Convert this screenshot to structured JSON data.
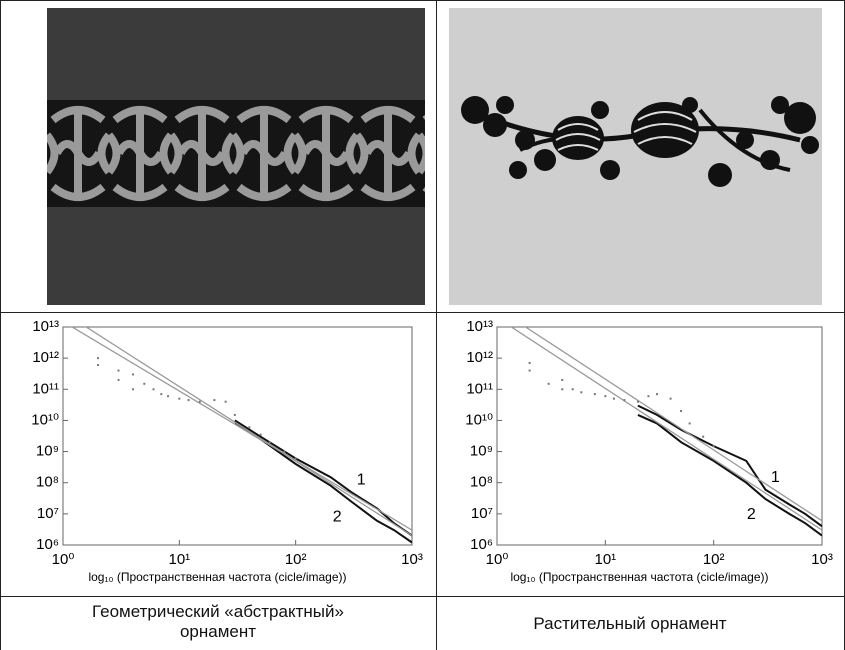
{
  "captions": [
    "Геометрический «абстрактный» орнамент",
    "Растительный орнамент"
  ],
  "chart_data": [
    {
      "type": "line",
      "xlabel": "log₁₀ (Пространственная частота (cicle/image))",
      "log_x": true,
      "log_y": true,
      "xlim": [
        1,
        1000
      ],
      "ylim": [
        1000000,
        10000000000000
      ],
      "xticks": [
        {
          "value": 1,
          "label": "10⁰"
        },
        {
          "value": 10,
          "label": "10¹"
        },
        {
          "value": 100,
          "label": "10²"
        },
        {
          "value": 1000,
          "label": "10³"
        }
      ],
      "yticks": [
        {
          "value": 1000000,
          "label": "10⁶"
        },
        {
          "value": 10000000,
          "label": "10⁷"
        },
        {
          "value": 100000000,
          "label": "10⁸"
        },
        {
          "value": 1000000000,
          "label": "10⁹"
        },
        {
          "value": 10000000000,
          "label": "10¹⁰"
        },
        {
          "value": 100000000000,
          "label": "10¹¹"
        },
        {
          "value": 1000000000000,
          "label": "10¹²"
        },
        {
          "value": 10000000000000,
          "label": "10¹³"
        }
      ],
      "series": [
        {
          "name": "1",
          "type": "line",
          "color": "#111111",
          "x": [
            30,
            50,
            100,
            200,
            300,
            500,
            700,
            1000
          ],
          "values": [
            10000000000,
            3000000000,
            600000000,
            150000000,
            50000000,
            15000000,
            5000000,
            2000000
          ]
        },
        {
          "name": "2",
          "type": "line",
          "color": "#111111",
          "x": [
            30,
            50,
            100,
            200,
            300,
            500,
            700,
            1000
          ],
          "values": [
            8000000000,
            2500000000,
            400000000,
            80000000,
            25000000,
            6000000,
            3000000,
            1200000
          ]
        },
        {
          "type": "line",
          "color": "#9a9a9a",
          "x": [
            1,
            1000
          ],
          "values": [
            30000000000000,
            2000000
          ]
        },
        {
          "type": "line",
          "color": "#9a9a9a",
          "x": [
            1,
            1000
          ],
          "values": [
            15000000000000,
            3000000
          ]
        },
        {
          "type": "scatter",
          "color": "#777777",
          "x": [
            2,
            2,
            3,
            3,
            4,
            4,
            5,
            6,
            7,
            8,
            10,
            12,
            15,
            20,
            25,
            30,
            40,
            50,
            60,
            80,
            100
          ],
          "values": [
            1000000000000,
            600000000000,
            400000000000,
            200000000000,
            300000000000,
            100000000000,
            150000000000,
            100000000000,
            70000000000,
            60000000000,
            50000000000,
            45000000000,
            40000000000,
            45000000000,
            40000000000,
            15000000000,
            6000000000,
            3500000000,
            2000000000,
            1000000000,
            600000000
          ]
        }
      ]
    },
    {
      "type": "line",
      "xlabel": "log₁₀ (Пространственная частота (cicle/image))",
      "log_x": true,
      "log_y": true,
      "xlim": [
        1,
        1000
      ],
      "ylim": [
        1000000,
        10000000000000
      ],
      "xticks": [
        {
          "value": 1,
          "label": "10⁰"
        },
        {
          "value": 10,
          "label": "10¹"
        },
        {
          "value": 100,
          "label": "10²"
        },
        {
          "value": 1000,
          "label": "10³"
        }
      ],
      "yticks": [
        {
          "value": 1000000,
          "label": "10⁶"
        },
        {
          "value": 10000000,
          "label": "10⁷"
        },
        {
          "value": 100000000,
          "label": "10⁸"
        },
        {
          "value": 1000000000,
          "label": "10⁹"
        },
        {
          "value": 10000000000,
          "label": "10¹⁰"
        },
        {
          "value": 100000000000,
          "label": "10¹¹"
        },
        {
          "value": 1000000000000,
          "label": "10¹²"
        },
        {
          "value": 10000000000000,
          "label": "10¹³"
        }
      ],
      "series": [
        {
          "name": "1",
          "type": "line",
          "color": "#111111",
          "x": [
            20,
            30,
            50,
            100,
            200,
            300,
            500,
            700,
            1000
          ],
          "values": [
            30000000000,
            15000000000,
            5000000000,
            1500000000,
            500000000,
            60000000,
            20000000,
            10000000,
            4000000
          ]
        },
        {
          "name": "2",
          "type": "line",
          "color": "#111111",
          "x": [
            20,
            30,
            50,
            100,
            200,
            300,
            500,
            700,
            1000
          ],
          "values": [
            15000000000,
            8000000000,
            2000000000,
            500000000,
            100000000,
            30000000,
            10000000,
            5000000,
            2000000
          ]
        },
        {
          "type": "line",
          "color": "#9a9a9a",
          "x": [
            1,
            1000
          ],
          "values": [
            40000000000000,
            6000000
          ]
        },
        {
          "type": "line",
          "color": "#9a9a9a",
          "x": [
            1,
            1000
          ],
          "values": [
            20000000000000,
            3000000
          ]
        },
        {
          "type": "scatter",
          "color": "#777777",
          "x": [
            2,
            2,
            3,
            4,
            4,
            5,
            6,
            8,
            10,
            12,
            15,
            20,
            25,
            30,
            40,
            50,
            60,
            80,
            100
          ],
          "values": [
            700000000000,
            400000000000,
            150000000000,
            200000000000,
            100000000000,
            100000000000,
            80000000000,
            70000000000,
            60000000000,
            50000000000,
            45000000000,
            40000000000,
            60000000000,
            70000000000,
            50000000000,
            20000000000,
            8000000000,
            3000000000,
            1500000000
          ]
        }
      ]
    }
  ]
}
